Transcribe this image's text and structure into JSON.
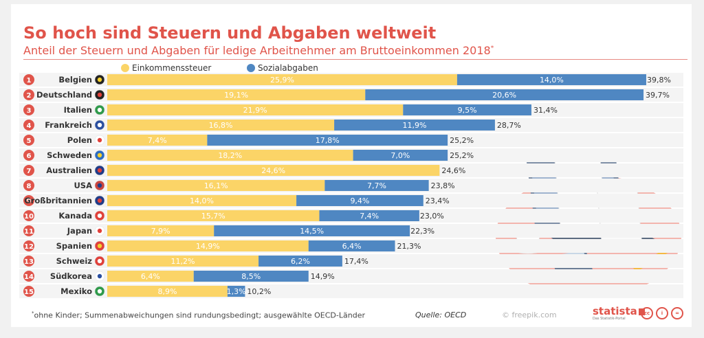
{
  "header": {
    "title": "So hoch sind Steuern und Abgaben weltweit",
    "subtitle": "Anteil der Steuern und Abgaben für ledige Arbeitnehmer am Bruttoeinkommen 2018",
    "subtitle_mark": "*"
  },
  "legend": [
    {
      "label": "Einkommenssteuer",
      "color": "#fbd467"
    },
    {
      "label": "Sozialabgaben",
      "color": "#4f87c2"
    }
  ],
  "chart_data": {
    "type": "bar",
    "orientation": "horizontal",
    "stacked": true,
    "categories": [
      "Belgien",
      "Deutschland",
      "Italien",
      "Frankreich",
      "Polen",
      "Schweden",
      "Australien",
      "USA",
      "Großbritannien",
      "Kanada",
      "Japan",
      "Spanien",
      "Schweiz",
      "Südkorea",
      "Mexiko"
    ],
    "ranks": [
      "1",
      "2",
      "3",
      "4",
      "5",
      "6",
      "7",
      "8",
      "9",
      "10",
      "11",
      "12",
      "13",
      "14",
      "15"
    ],
    "flags": [
      "flag-be",
      "flag-de",
      "flag-it",
      "flag-fr",
      "flag-pl",
      "flag-se",
      "flag-au",
      "flag-us",
      "flag-gb",
      "flag-ca",
      "flag-jp",
      "flag-es",
      "flag-ch",
      "flag-kr",
      "flag-mx"
    ],
    "series": [
      {
        "name": "Einkommenssteuer",
        "color": "#fbd467",
        "values": [
          25.9,
          19.1,
          21.9,
          16.8,
          7.4,
          18.2,
          24.6,
          16.1,
          14.0,
          15.7,
          7.9,
          14.9,
          11.2,
          6.4,
          8.9
        ],
        "labels": [
          "25,9%",
          "19,1%",
          "21,9%",
          "16,8%",
          "7,4%",
          "18,2%",
          "24,6%",
          "16,1%",
          "14,0%",
          "15,7%",
          "7,9%",
          "14,9%",
          "11,2%",
          "6,4%",
          "8,9%"
        ]
      },
      {
        "name": "Sozialabgaben",
        "color": "#4f87c2",
        "values": [
          14.0,
          20.6,
          9.5,
          11.9,
          17.8,
          7.0,
          0,
          7.7,
          9.4,
          7.4,
          14.5,
          6.4,
          6.2,
          8.5,
          1.3
        ],
        "labels": [
          "14,0%",
          "20,6%",
          "9,5%",
          "11,9%",
          "17,8%",
          "7,0%",
          "",
          "7,7%",
          "9,4%",
          "7,4%",
          "14,5%",
          "6,4%",
          "6,2%",
          "8,5%",
          "1,3%"
        ]
      }
    ],
    "totals": [
      39.8,
      39.7,
      31.4,
      28.7,
      25.2,
      25.2,
      24.6,
      23.8,
      23.4,
      23.0,
      22.3,
      21.3,
      17.4,
      14.9,
      10.2
    ],
    "total_labels": [
      "39,8%",
      "39,7%",
      "31,4%",
      "28,7%",
      "25,2%",
      "25,2%",
      "24,6%",
      "23,8%",
      "23,4%",
      "23,0%",
      "22,3%",
      "21,3%",
      "17,4%",
      "14,9%",
      "10,2%"
    ],
    "xlim": [
      0,
      39.8
    ]
  },
  "footer": {
    "footnote_mark": "*",
    "footnote": "ohne Kinder; Summenabweichungen sind rundungsbedingt; ausgewählte OECD-Länder",
    "source": "Quelle: OECD",
    "credit": "© freepik.com",
    "brand": "statista",
    "brand_tagline": "Das Statistik-Portal",
    "license_icons": [
      "cc-icon",
      "by-icon",
      "nd-icon"
    ],
    "license_text": [
      "cc",
      "i",
      "="
    ]
  },
  "colors": {
    "accent": "#e0544a",
    "row_band": "#f4f4f4"
  }
}
